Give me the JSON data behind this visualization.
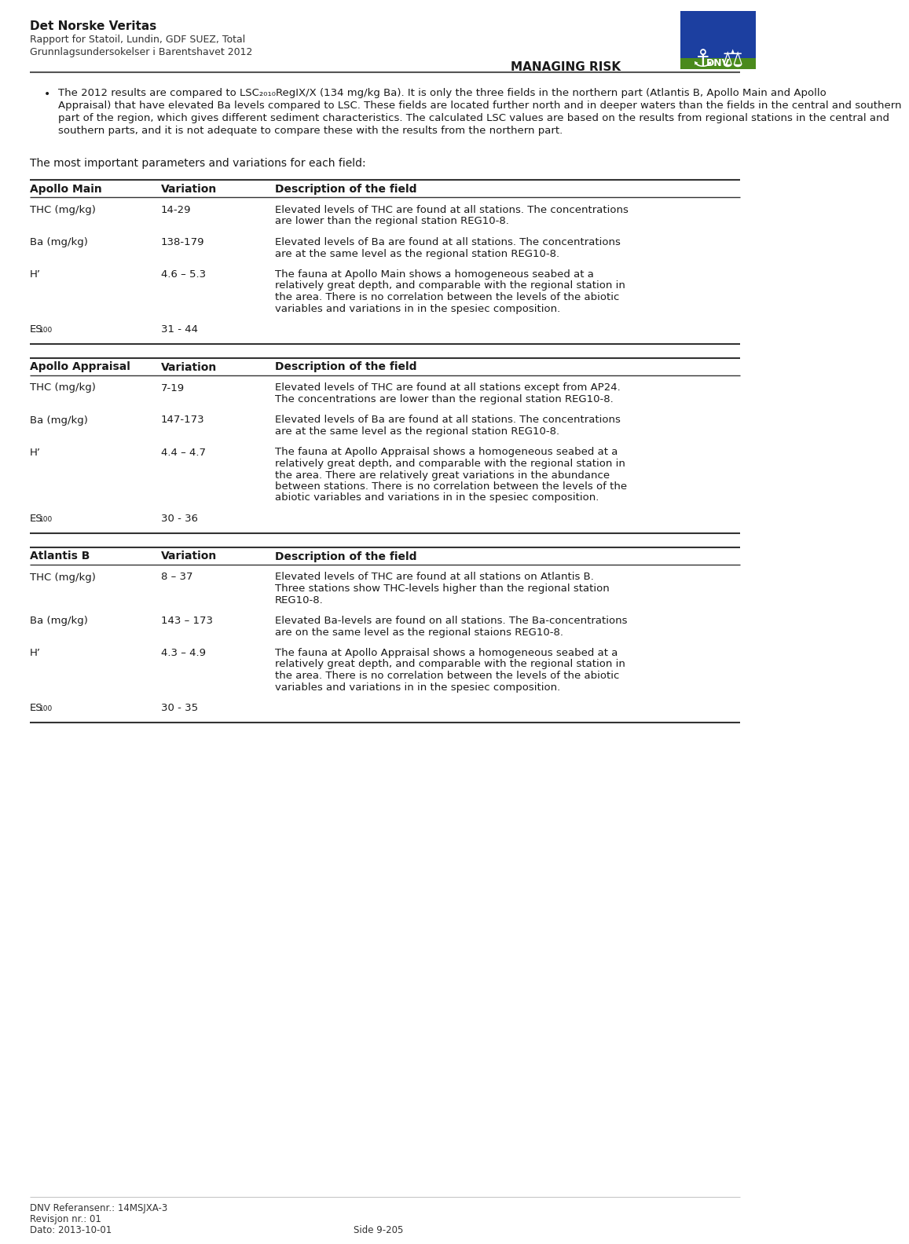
{
  "header_line1": "Det Norske Veritas",
  "header_line2": "Rapport for Statoil, Lundin, GDF SUEZ, Total",
  "header_line3": "Grunnlagsundersokelser i Barentshavet 2012",
  "managing_risk": "MANAGING RISK",
  "body_lines": [
    "The 2012 results are compared to LSC₂₀₁₀RegIX/X (134 mg/kg Ba). It is only the three fields in the northern part (Atlantis B, Apollo Main and Apollo Appraisal) that have elevated Ba",
    "levels compared to LSC. These fields are located further north and in deeper waters than the fields in the central and southern part of the region, which gives different sediment",
    "characteristics. The calculated LSC values are based on the results from regional stations in the central and southern parts, and it is not adequate to compare these with the results",
    "from the northern part."
  ],
  "intro_text": "The most important parameters and variations for each field:",
  "tables": [
    {
      "section": "Apollo Main",
      "col2": "Variation",
      "col3": "Description of the field",
      "rows": [
        {
          "param": "THC (mg/kg)",
          "param_sub": null,
          "variation": "14-29",
          "desc_lines": [
            "Elevated levels of THC are found at all stations. The concentrations",
            "are lower than the regional station REG10-8."
          ]
        },
        {
          "param": "Ba (mg/kg)",
          "param_sub": null,
          "variation": "138-179",
          "desc_lines": [
            "Elevated levels of Ba are found at all stations. The concentrations",
            "are at the same level as the regional station REG10-8."
          ]
        },
        {
          "param": "H’",
          "param_sub": null,
          "variation": "4.6 – 5.3",
          "desc_lines": [
            "The fauna at Apollo Main shows a homogeneous seabed at a",
            "relatively great depth, and comparable with the regional station in",
            "the area. There is no correlation between the levels of the abiotic",
            "variables and variations in in the spesiec composition."
          ]
        },
        {
          "param": "ES",
          "param_sub": "100",
          "variation": "31 - 44",
          "desc_lines": []
        }
      ]
    },
    {
      "section": "Apollo Appraisal",
      "col2": "Variation",
      "col3": "Description of the field",
      "rows": [
        {
          "param": "THC (mg/kg)",
          "param_sub": null,
          "variation": "7-19",
          "desc_lines": [
            "Elevated levels of THC are found at all stations except from AP24.",
            "The concentrations are lower than the regional station REG10-8."
          ]
        },
        {
          "param": "Ba (mg/kg)",
          "param_sub": null,
          "variation": "147-173",
          "desc_lines": [
            "Elevated levels of Ba are found at all stations. The concentrations",
            "are at the same level as the regional station REG10-8."
          ]
        },
        {
          "param": "H’",
          "param_sub": null,
          "variation": "4.4 – 4.7",
          "desc_lines": [
            "The fauna at Apollo Appraisal shows a homogeneous seabed at a",
            "relatively great depth, and comparable with the regional station in",
            "the area. There are relatively great variations in the abundance",
            "between stations. There is no correlation between the levels of the",
            "abiotic variables and variations in in the spesiec composition."
          ]
        },
        {
          "param": "ES",
          "param_sub": "100",
          "variation": "30 - 36",
          "desc_lines": []
        }
      ]
    },
    {
      "section": "Atlantis B",
      "col2": "Variation",
      "col3": "Description of the field",
      "rows": [
        {
          "param": "THC (mg/kg)",
          "param_sub": null,
          "variation": "8 – 37",
          "desc_lines": [
            "Elevated levels of THC are found at all stations on Atlantis B.",
            "Three stations show THC-levels higher than the regional station",
            "REG10-8."
          ]
        },
        {
          "param": "Ba (mg/kg)",
          "param_sub": null,
          "variation": "143 – 173",
          "desc_lines": [
            "Elevated Ba-levels are found on all stations. The Ba-concentrations",
            "are on the same level as the regional staions REG10-8."
          ]
        },
        {
          "param": "H’",
          "param_sub": null,
          "variation": "4.3 – 4.9",
          "desc_lines": [
            "The fauna at Apollo Appraisal shows a homogeneous seabed at a",
            "relatively great depth, and comparable with the regional station in",
            "the area. There is no correlation between the levels of the abiotic",
            "variables and variations in in the spesiec composition."
          ]
        },
        {
          "param": "ES",
          "param_sub": "100",
          "variation": "30 - 35",
          "desc_lines": []
        }
      ]
    }
  ],
  "footer_ref": "DNV Referansenr.: 14MSJXA-3",
  "footer_rev": "Revisjon nr.: 01",
  "footer_date": "Dato: 2013-10-01",
  "footer_page": "Side 9-205",
  "bg_color": "#ffffff",
  "text_color": "#1a1a1a",
  "line_color": "#333333",
  "logo_blue": "#1c3fa0",
  "logo_green": "#4a8a1c"
}
